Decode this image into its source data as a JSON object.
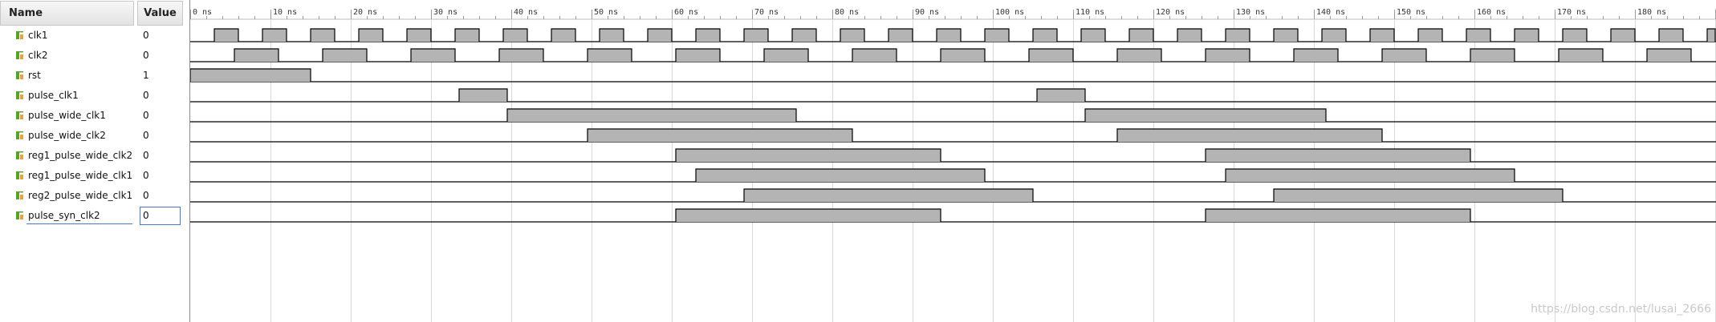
{
  "columns": {
    "name": "Name",
    "value": "Value"
  },
  "signals": [
    {
      "name": "clk1",
      "value": "0",
      "kind": "clk",
      "period": 6,
      "high_start": 3
    },
    {
      "name": "clk2",
      "value": "0",
      "kind": "clk",
      "period": 11,
      "high_start": 5.5
    },
    {
      "name": "rst",
      "value": "1",
      "kind": "pulse",
      "highs": [
        [
          0,
          15
        ]
      ]
    },
    {
      "name": "pulse_clk1",
      "value": "0",
      "kind": "pulse",
      "highs": [
        [
          33.5,
          39.5
        ],
        [
          105.5,
          111.5
        ]
      ]
    },
    {
      "name": "pulse_wide_clk1",
      "value": "0",
      "kind": "pulse",
      "highs": [
        [
          39.5,
          75.5
        ],
        [
          111.5,
          141.5
        ]
      ]
    },
    {
      "name": "pulse_wide_clk2",
      "value": "0",
      "kind": "pulse",
      "highs": [
        [
          49.5,
          82.5
        ],
        [
          115.5,
          148.5
        ]
      ]
    },
    {
      "name": "reg1_pulse_wide_clk2",
      "value": "0",
      "kind": "pulse",
      "highs": [
        [
          60.5,
          93.5
        ],
        [
          126.5,
          159.5
        ]
      ]
    },
    {
      "name": "reg1_pulse_wide_clk1",
      "value": "0",
      "kind": "pulse",
      "highs": [
        [
          63,
          99
        ],
        [
          129,
          165
        ]
      ]
    },
    {
      "name": "reg2_pulse_wide_clk1",
      "value": "0",
      "kind": "pulse",
      "highs": [
        [
          69,
          105
        ],
        [
          135,
          171
        ]
      ]
    },
    {
      "name": "pulse_syn_clk2",
      "value": "0",
      "kind": "pulse",
      "highs": [
        [
          60.5,
          93.5
        ],
        [
          126.5,
          159.5
        ]
      ],
      "selected": true
    }
  ],
  "timeline": {
    "unit": "ns",
    "ticks": [
      "0 ns",
      "10 ns",
      "20 ns",
      "30 ns",
      "40 ns",
      "50 ns",
      "60 ns",
      "70 ns",
      "80 ns",
      "90 ns",
      "100 ns",
      "110 ns",
      "120 ns",
      "130 ns",
      "140 ns",
      "150 ns",
      "160 ns",
      "170 ns",
      "180 ns"
    ],
    "end_ns": 190
  },
  "watermark": "https://blog.csdn.net/lusai_2666",
  "colors": {
    "wave_fill": "#b4b4b4",
    "wave_line": "#000000",
    "grid": "#d8d8d8",
    "icon_green": "#5aa02c",
    "icon_orange": "#e8a23a",
    "selection": "#4a78c8"
  },
  "icons": {
    "signal": "signal-icon"
  }
}
